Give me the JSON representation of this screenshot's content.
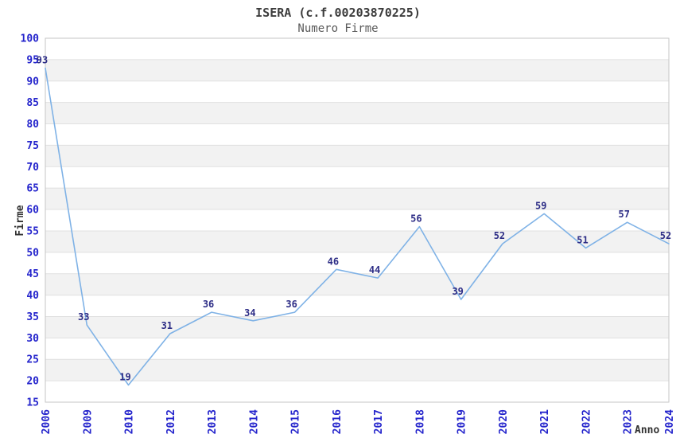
{
  "header": {
    "title": "ISERA (c.f.00203870225)",
    "subtitle": "Numero Firme"
  },
  "chart_data": {
    "type": "line",
    "title": "ISERA (c.f.00203870225)",
    "subtitle": "Numero Firme",
    "xlabel": "Anno",
    "ylabel": "Firme",
    "categories": [
      "2006",
      "2009",
      "2010",
      "2012",
      "2013",
      "2014",
      "2015",
      "2016",
      "2017",
      "2018",
      "2019",
      "2020",
      "2021",
      "2022",
      "2023",
      "2024"
    ],
    "values": [
      93,
      33,
      19,
      31,
      36,
      34,
      36,
      46,
      44,
      56,
      39,
      52,
      59,
      51,
      57,
      52
    ],
    "point_labels": [
      "93",
      "33",
      "19",
      "31",
      "36",
      "34",
      "36",
      "46",
      "44",
      "56",
      "39",
      "52",
      "59",
      "51",
      "57",
      "52"
    ],
    "ylim": [
      15,
      100
    ],
    "ytick_step": 5,
    "ytick_labels": [
      "15",
      "20",
      "25",
      "30",
      "35",
      "40",
      "45",
      "50",
      "55",
      "60",
      "65",
      "70",
      "75",
      "80",
      "85",
      "90",
      "95",
      "100"
    ],
    "grid": "horizontal-alternating-bands",
    "legend": "none",
    "colors": {
      "line": "#7fb2e6",
      "tick_labels": "#2424cc",
      "point_labels": "#2d2d86",
      "band_fill": "#f2f2f2",
      "gridline": "#e0e0e0",
      "plot_border": "#c6c6c6",
      "title_text": "#3c3c3c",
      "subtitle_text": "#5a5a5a",
      "axis_title_text": "#333333"
    }
  }
}
